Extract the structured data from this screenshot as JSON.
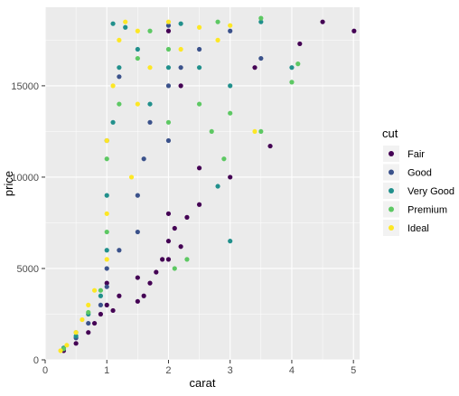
{
  "chart_data": {
    "type": "scatter",
    "title": "",
    "xlabel": "carat",
    "ylabel": "price",
    "xlim": [
      0,
      5.1
    ],
    "ylim": [
      0,
      19300
    ],
    "x_ticks": [
      0,
      1,
      2,
      3,
      4,
      5
    ],
    "y_ticks": [
      0,
      5000,
      10000,
      15000
    ],
    "x_tick_labels": [
      "0",
      "1",
      "2",
      "3",
      "4",
      "5"
    ],
    "y_tick_labels": [
      "0",
      "5000",
      "10000",
      "15000"
    ],
    "grid": true,
    "legend": {
      "title": "cut",
      "placement": "right",
      "entries": [
        "Fair",
        "Good",
        "Very Good",
        "Premium",
        "Ideal"
      ]
    },
    "colors": {
      "Fair": "#440154",
      "Good": "#3B528B",
      "Very Good": "#21908C",
      "Premium": "#5DC863",
      "Ideal": "#FDE725",
      "panel_background": "#EBEBEB",
      "grid_line": "#FFFFFF"
    },
    "series": [
      {
        "name": "Fair",
        "points": [
          [
            0.3,
            500
          ],
          [
            0.5,
            900
          ],
          [
            0.7,
            1500
          ],
          [
            0.8,
            2000
          ],
          [
            0.9,
            2500
          ],
          [
            1.0,
            3000
          ],
          [
            1.0,
            4200
          ],
          [
            1.1,
            2700
          ],
          [
            1.2,
            3500
          ],
          [
            1.5,
            3200
          ],
          [
            1.5,
            4500
          ],
          [
            1.6,
            3500
          ],
          [
            1.7,
            4200
          ],
          [
            1.8,
            4800
          ],
          [
            1.9,
            5500
          ],
          [
            2.0,
            5500
          ],
          [
            2.0,
            6500
          ],
          [
            2.0,
            8000
          ],
          [
            2.1,
            7200
          ],
          [
            2.2,
            6200
          ],
          [
            2.3,
            7800
          ],
          [
            2.5,
            8500
          ],
          [
            2.5,
            10500
          ],
          [
            3.0,
            10000
          ],
          [
            3.65,
            11700
          ],
          [
            4.5,
            18500
          ],
          [
            5.01,
            18000
          ],
          [
            4.13,
            17300
          ],
          [
            3.4,
            16000
          ],
          [
            2.2,
            15000
          ],
          [
            2.0,
            18000
          ]
        ]
      },
      {
        "name": "Good",
        "points": [
          [
            0.3,
            600
          ],
          [
            0.5,
            1200
          ],
          [
            0.7,
            2000
          ],
          [
            0.9,
            3000
          ],
          [
            1.0,
            4000
          ],
          [
            1.0,
            5000
          ],
          [
            1.2,
            6000
          ],
          [
            1.5,
            7000
          ],
          [
            1.5,
            9000
          ],
          [
            1.6,
            11000
          ],
          [
            1.7,
            13000
          ],
          [
            2.0,
            12000
          ],
          [
            2.0,
            15000
          ],
          [
            2.2,
            16000
          ],
          [
            2.5,
            17000
          ],
          [
            2.0,
            18300
          ],
          [
            3.0,
            18000
          ],
          [
            3.5,
            16500
          ],
          [
            1.2,
            15500
          ],
          [
            1.0,
            12000
          ]
        ]
      },
      {
        "name": "Very Good",
        "points": [
          [
            0.3,
            650
          ],
          [
            0.5,
            1300
          ],
          [
            0.7,
            2500
          ],
          [
            0.9,
            3500
          ],
          [
            1.0,
            6000
          ],
          [
            1.0,
            9000
          ],
          [
            1.1,
            13000
          ],
          [
            1.2,
            16000
          ],
          [
            1.3,
            18200
          ],
          [
            1.5,
            17000
          ],
          [
            1.7,
            14000
          ],
          [
            2.0,
            16000
          ],
          [
            2.2,
            18400
          ],
          [
            2.5,
            16000
          ],
          [
            3.0,
            15000
          ],
          [
            3.0,
            6500
          ],
          [
            3.5,
            18500
          ],
          [
            4.0,
            16000
          ],
          [
            2.8,
            9500
          ],
          [
            1.1,
            18400
          ]
        ]
      },
      {
        "name": "Premium",
        "points": [
          [
            0.3,
            600
          ],
          [
            0.5,
            1500
          ],
          [
            0.7,
            2600
          ],
          [
            0.9,
            3800
          ],
          [
            1.0,
            7000
          ],
          [
            1.0,
            11000
          ],
          [
            1.2,
            14000
          ],
          [
            1.5,
            16500
          ],
          [
            1.7,
            18000
          ],
          [
            2.0,
            13000
          ],
          [
            2.0,
            17000
          ],
          [
            2.1,
            5000
          ],
          [
            2.3,
            5500
          ],
          [
            2.5,
            14000
          ],
          [
            2.7,
            12500
          ],
          [
            2.9,
            11000
          ],
          [
            3.0,
            13500
          ],
          [
            3.5,
            12500
          ],
          [
            4.0,
            15200
          ],
          [
            4.1,
            16200
          ],
          [
            3.5,
            18700
          ],
          [
            2.8,
            18500
          ]
        ]
      },
      {
        "name": "Ideal",
        "points": [
          [
            0.25,
            500
          ],
          [
            0.35,
            800
          ],
          [
            0.5,
            1500
          ],
          [
            0.6,
            2200
          ],
          [
            0.7,
            3000
          ],
          [
            0.8,
            3800
          ],
          [
            1.0,
            5500
          ],
          [
            1.0,
            8000
          ],
          [
            1.0,
            12000
          ],
          [
            1.1,
            15000
          ],
          [
            1.2,
            17500
          ],
          [
            1.3,
            18500
          ],
          [
            1.5,
            14000
          ],
          [
            1.5,
            18000
          ],
          [
            1.7,
            16000
          ],
          [
            2.0,
            18500
          ],
          [
            2.2,
            17000
          ],
          [
            2.5,
            18200
          ],
          [
            3.0,
            18300
          ],
          [
            2.8,
            17500
          ],
          [
            3.4,
            12500
          ],
          [
            1.4,
            10000
          ]
        ]
      }
    ]
  }
}
